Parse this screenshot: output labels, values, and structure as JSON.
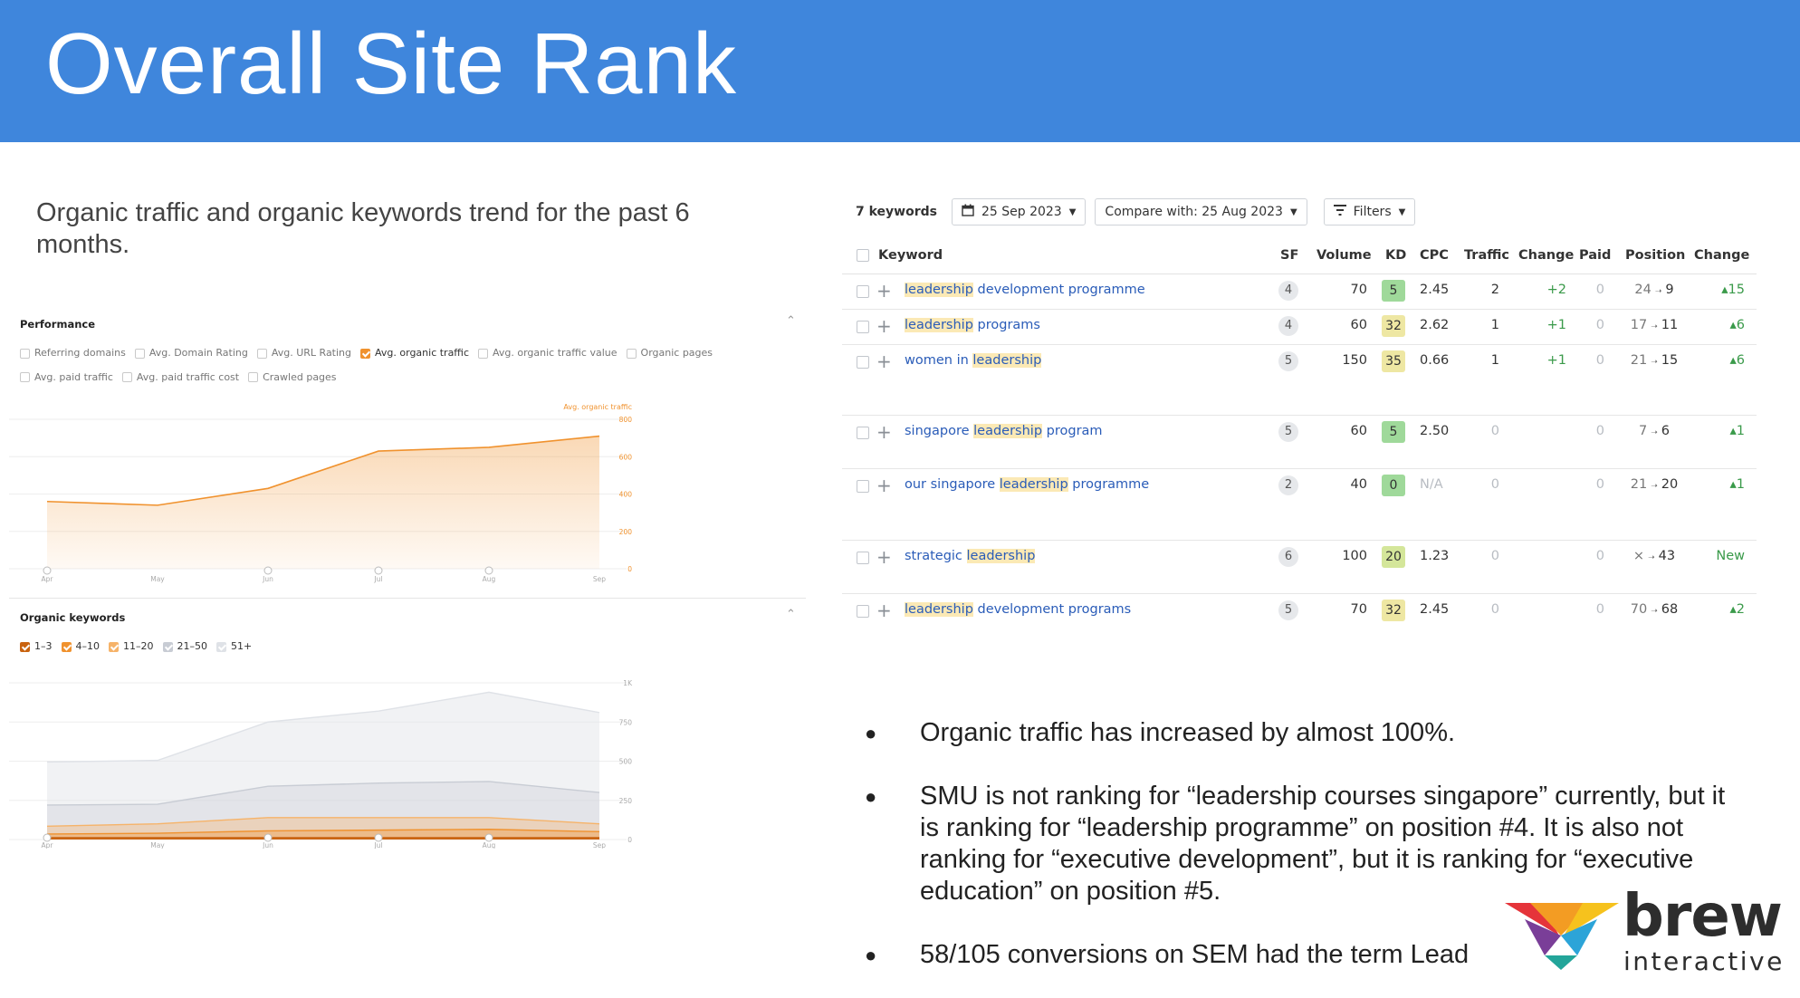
{
  "title": "Overall Site Rank",
  "intro": "Organic traffic and organic keywords trend for the past 6 months.",
  "performance": {
    "heading": "Performance",
    "options": [
      {
        "label": "Referring domains",
        "checked": false
      },
      {
        "label": "Avg. Domain Rating",
        "checked": false
      },
      {
        "label": "Avg. URL Rating",
        "checked": false
      },
      {
        "label": "Avg. organic traffic",
        "checked": true
      },
      {
        "label": "Avg. organic traffic value",
        "checked": false
      },
      {
        "label": "Organic pages",
        "checked": false
      },
      {
        "label": "Avg. paid traffic",
        "checked": false
      },
      {
        "label": "Avg. paid traffic cost",
        "checked": false
      },
      {
        "label": "Crawled pages",
        "checked": false
      }
    ],
    "chart_data": {
      "type": "area",
      "series": [
        {
          "name": "Avg. organic traffic",
          "values": [
            360,
            340,
            430,
            630,
            650,
            710
          ]
        }
      ],
      "x": [
        "Apr",
        "May",
        "Jun",
        "Jul",
        "Aug",
        "Sep"
      ],
      "yticks": [
        "800",
        "600",
        "400",
        "200",
        "0"
      ],
      "ylim": [
        0,
        800
      ],
      "color": "#f0922e"
    }
  },
  "organic_keywords": {
    "heading": "Organic keywords",
    "options": [
      {
        "label": "1–3",
        "checked": true,
        "color": "#c9630f"
      },
      {
        "label": "4–10",
        "checked": true,
        "color": "#f0922e"
      },
      {
        "label": "11–20",
        "checked": true,
        "color": "#f6b369"
      },
      {
        "label": "21–50",
        "checked": true,
        "color": "#c8ccd4"
      },
      {
        "label": "51+",
        "checked": true,
        "color": "#dfe2e7"
      }
    ],
    "chart_data": {
      "type": "area",
      "x": [
        "Apr",
        "May",
        "Jun",
        "Jul",
        "Aug",
        "Sep"
      ],
      "yticks": [
        "1K",
        "750",
        "500",
        "250",
        "0"
      ],
      "ylim": [
        0,
        1000
      ],
      "series": [
        {
          "name": "1–3",
          "values": [
            10,
            10,
            10,
            10,
            10,
            10
          ]
        },
        {
          "name": "4–10",
          "values": [
            35,
            40,
            55,
            60,
            65,
            50
          ]
        },
        {
          "name": "11–20",
          "values": [
            85,
            100,
            140,
            140,
            140,
            100
          ]
        },
        {
          "name": "21–50",
          "values": [
            220,
            225,
            340,
            360,
            370,
            300
          ]
        },
        {
          "name": "51+",
          "values": [
            495,
            505,
            750,
            820,
            940,
            810
          ]
        }
      ]
    }
  },
  "toolbar": {
    "keyword_count": "7 keywords",
    "date": "25 Sep 2023",
    "compare": "Compare with: 25 Aug 2023",
    "filters": "Filters"
  },
  "table": {
    "headers": [
      "Keyword",
      "SF",
      "Volume",
      "KD",
      "CPC",
      "Traffic",
      "Change",
      "Paid",
      "Position",
      "Change"
    ],
    "rows": [
      {
        "pre": "",
        "hl": "leadership",
        "post": " development programme",
        "sf": "4",
        "volume": "70",
        "kd": "5",
        "kd_color": "#9fd99a",
        "cpc": "2.45",
        "traffic": "2",
        "tchange": "+2",
        "paid": "0",
        "pos_from": "24",
        "pos_to": "9",
        "pchange": "▴15"
      },
      {
        "pre": "",
        "hl": "leadership",
        "post": " programs",
        "sf": "4",
        "volume": "60",
        "kd": "32",
        "kd_color": "#eee7a3",
        "cpc": "2.62",
        "traffic": "1",
        "tchange": "+1",
        "paid": "0",
        "pos_from": "17",
        "pos_to": "11",
        "pchange": "▴6"
      },
      {
        "pre": "women in ",
        "hl": "leadership",
        "post": "",
        "sf": "5",
        "volume": "150",
        "kd": "35",
        "kd_color": "#eee7a3",
        "cpc": "0.66",
        "traffic": "1",
        "tchange": "+1",
        "paid": "0",
        "pos_from": "21",
        "pos_to": "15",
        "pchange": "▴6"
      },
      {
        "pre": "singapore ",
        "hl": "leadership",
        "post": " program",
        "sf": "5",
        "volume": "60",
        "kd": "5",
        "kd_color": "#9fd99a",
        "cpc": "2.50",
        "traffic": "0",
        "tchange": "",
        "paid": "0",
        "pos_from": "7",
        "pos_to": "6",
        "pchange": "▴1"
      },
      {
        "pre": "our singapore ",
        "hl": "leadership",
        "post": " programme",
        "sf": "2",
        "volume": "40",
        "kd": "0",
        "kd_color": "#9fd99a",
        "cpc": "N/A",
        "traffic": "0",
        "tchange": "",
        "paid": "0",
        "pos_from": "21",
        "pos_to": "20",
        "pchange": "▴1"
      },
      {
        "pre": "strategic ",
        "hl": "leadership",
        "post": "",
        "sf": "6",
        "volume": "100",
        "kd": "20",
        "kd_color": "#d4e69a",
        "cpc": "1.23",
        "traffic": "0",
        "tchange": "",
        "paid": "0",
        "pos_from": "×",
        "pos_to": "43",
        "pchange": "New"
      },
      {
        "pre": "",
        "hl": "leadership",
        "post": " development programs",
        "sf": "5",
        "volume": "70",
        "kd": "32",
        "kd_color": "#eee7a3",
        "cpc": "2.45",
        "traffic": "0",
        "tchange": "",
        "paid": "0",
        "pos_from": "70",
        "pos_to": "68",
        "pchange": "▴2"
      }
    ]
  },
  "bullets": [
    "Organic traffic has increased by almost 100%.",
    "SMU is not ranking for “leadership courses singapore” currently, but it is ranking for “leadership programme” on position #4. It is also not ranking for “executive development”, but it is ranking for “executive education” on position #5.",
    "58/105 conversions on SEM had the term Lead"
  ],
  "logo": {
    "brand": "brew",
    "sub": "interactive"
  }
}
